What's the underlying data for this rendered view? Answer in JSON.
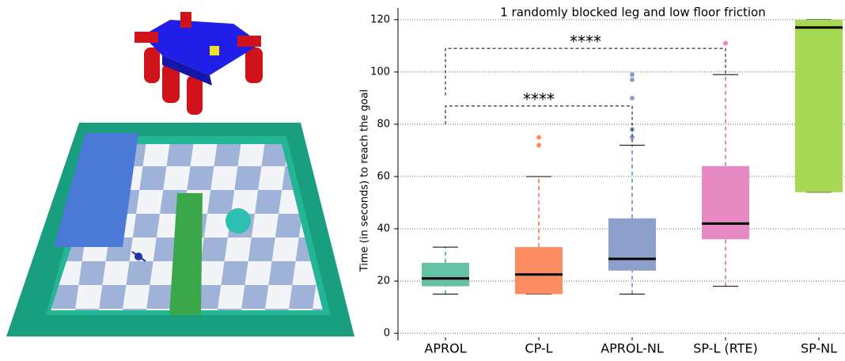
{
  "chart_data": {
    "type": "box",
    "title": "1 randomly blocked leg and low floor friction",
    "y_label": "Time (in seconds) to reach the goal",
    "categories": [
      "APROL",
      "CP-L",
      "APROL-NL",
      "SP-L (RTE)",
      "SP-NL"
    ],
    "colors": [
      "#66c2a5",
      "#fc8d62",
      "#8da0cb",
      "#e78ac3",
      "#a6d854"
    ],
    "min": [
      15,
      15,
      15,
      18,
      54
    ],
    "q1": [
      18,
      15,
      24,
      36,
      54
    ],
    "median": [
      21,
      22.5,
      28.5,
      42,
      117
    ],
    "q3": [
      27,
      33,
      44,
      64,
      120
    ],
    "max": [
      33,
      60,
      72,
      99,
      120
    ],
    "outliers": [
      [],
      [
        75,
        72
      ],
      [
        99,
        97,
        90,
        78,
        75
      ],
      [
        111
      ],
      []
    ],
    "ylim": [
      -2.7,
      124.5
    ],
    "yticks": [
      0,
      20,
      40,
      60,
      80,
      100,
      120
    ],
    "grid": true,
    "annotations": [
      {
        "text": "****",
        "between": [
          0,
          3
        ],
        "y": 109,
        "ends": [
          91,
          99
        ]
      },
      {
        "text": "****",
        "between": [
          0,
          2
        ],
        "y": 87,
        "ends": [
          80,
          72
        ]
      }
    ]
  }
}
